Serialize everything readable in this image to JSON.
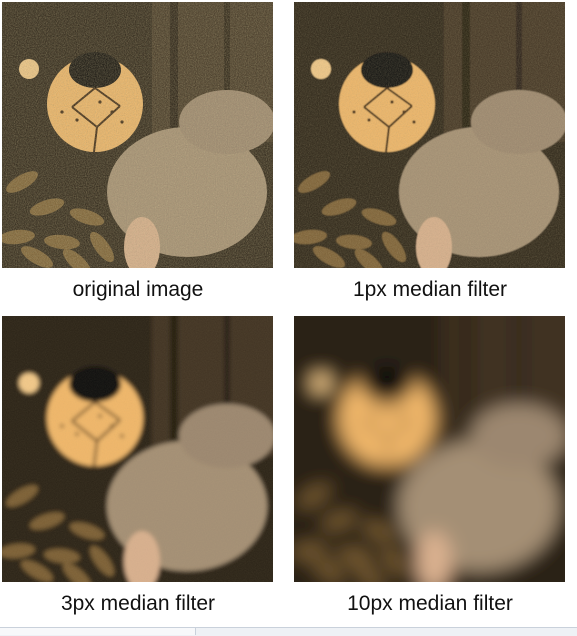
{
  "panels": [
    {
      "caption": "original image",
      "blur": 0,
      "noise": 0.55
    },
    {
      "caption": "1px median filter",
      "blur": 0.6,
      "noise": 0.35
    },
    {
      "caption": "3px median filter",
      "blur": 2.2,
      "noise": 0.12
    },
    {
      "caption": "10px median filter",
      "blur": 9,
      "noise": 0
    }
  ],
  "colors": {
    "background_dark": "#2a2116",
    "background_mid": "#4a3c2a",
    "plush_head": "#f1b76a",
    "plush_nose": "#0e0b09",
    "bunny_body": "#a48f75",
    "bunny_light": "#d9b08f"
  }
}
